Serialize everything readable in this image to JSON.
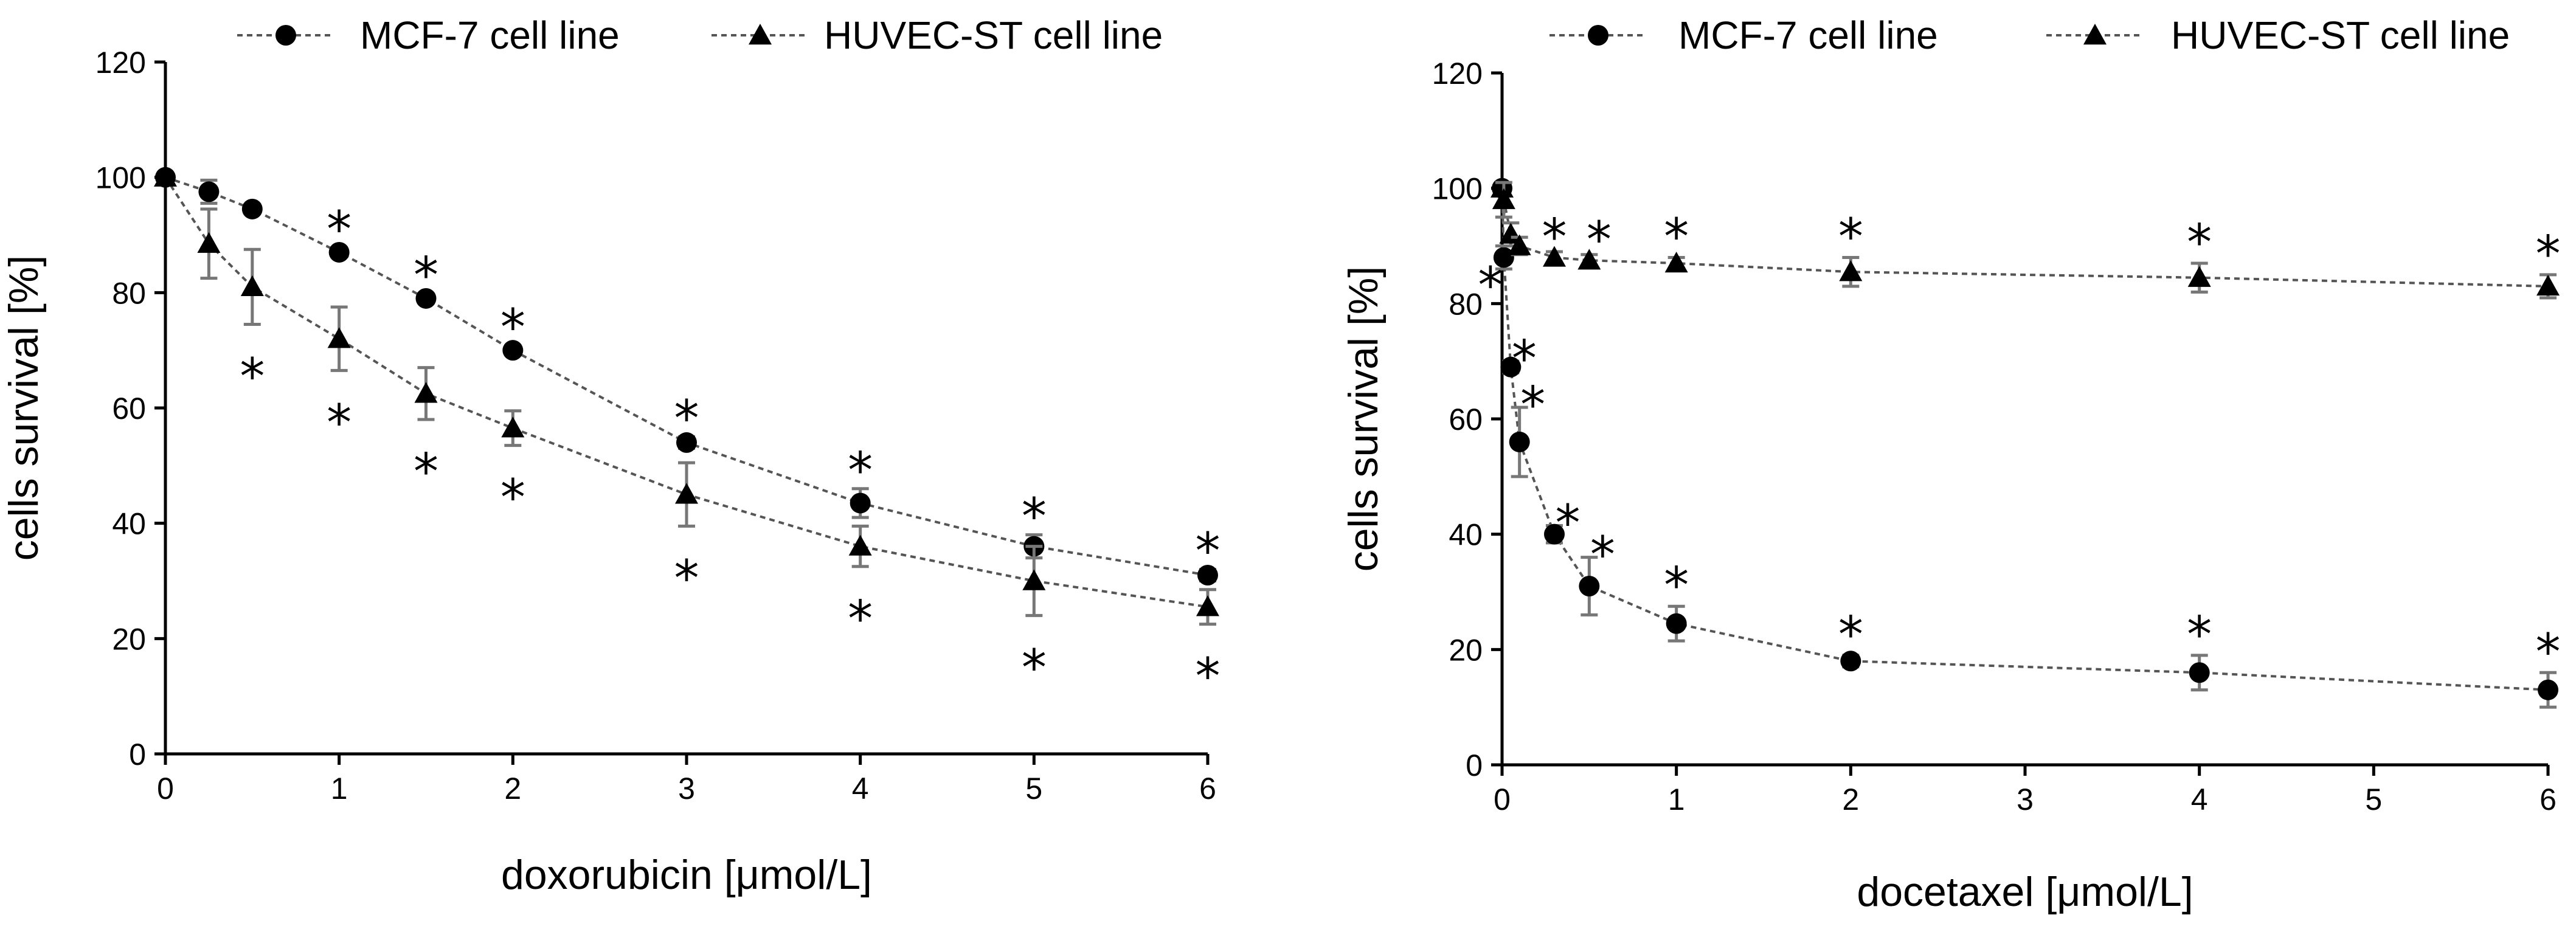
{
  "chart_data": [
    {
      "type": "line",
      "title": "",
      "xlabel": "doxorubicin [μmol/L]",
      "ylabel": "cells survival [%]",
      "xlim": [
        0,
        6
      ],
      "ylim": [
        0,
        120
      ],
      "xticks": [
        0,
        1,
        2,
        3,
        4,
        5,
        6
      ],
      "yticks": [
        0,
        20,
        40,
        60,
        80,
        100,
        120
      ],
      "legend": "top",
      "significance_marker": "*",
      "series": [
        {
          "name": "MCF-7 cell line",
          "marker": "circle",
          "color": "#000000",
          "points": [
            {
              "x": 0,
              "y": 100,
              "err": 0,
              "sig": false
            },
            {
              "x": 0.25,
              "y": 97.5,
              "err": 2,
              "sig": false
            },
            {
              "x": 0.5,
              "y": 94.5,
              "err": 0.8,
              "sig": false
            },
            {
              "x": 1,
              "y": 87,
              "err": 0.8,
              "sig": true
            },
            {
              "x": 1.5,
              "y": 79,
              "err": 0.8,
              "sig": true
            },
            {
              "x": 2,
              "y": 70,
              "err": 0.8,
              "sig": true
            },
            {
              "x": 3,
              "y": 54,
              "err": 1,
              "sig": true
            },
            {
              "x": 4,
              "y": 43.5,
              "err": 2.5,
              "sig": true
            },
            {
              "x": 5,
              "y": 36,
              "err": 2,
              "sig": true
            },
            {
              "x": 6,
              "y": 31,
              "err": 1,
              "sig": true
            }
          ]
        },
        {
          "name": "HUVEC-ST cell line",
          "marker": "triangle",
          "color": "#000000",
          "points": [
            {
              "x": 0,
              "y": 100,
              "err": 0,
              "sig": false
            },
            {
              "x": 0.25,
              "y": 88.5,
              "err": 6,
              "sig": false
            },
            {
              "x": 0.5,
              "y": 81,
              "err": 6.5,
              "sig": true
            },
            {
              "x": 1,
              "y": 72,
              "err": 5.5,
              "sig": true
            },
            {
              "x": 1.5,
              "y": 62.5,
              "err": 4.5,
              "sig": true
            },
            {
              "x": 2,
              "y": 56.5,
              "err": 3,
              "sig": true
            },
            {
              "x": 3,
              "y": 45,
              "err": 5.5,
              "sig": true
            },
            {
              "x": 4,
              "y": 36,
              "err": 3.5,
              "sig": true
            },
            {
              "x": 5,
              "y": 30,
              "err": 6,
              "sig": true
            },
            {
              "x": 6,
              "y": 25.5,
              "err": 3,
              "sig": true
            }
          ]
        }
      ]
    },
    {
      "type": "line",
      "title": "",
      "xlabel": "docetaxel [μmol/L]",
      "ylabel": "cells survival [%]",
      "xlim": [
        0,
        6
      ],
      "ylim": [
        0,
        120
      ],
      "xticks": [
        0,
        1,
        2,
        3,
        4,
        5,
        6
      ],
      "yticks": [
        0,
        20,
        40,
        60,
        80,
        100,
        120
      ],
      "legend": "top",
      "significance_marker": "*",
      "series": [
        {
          "name": "MCF-7 cell line",
          "marker": "circle",
          "color": "#000000",
          "points": [
            {
              "x": 0,
              "y": 100,
              "err": 0,
              "sig": false
            },
            {
              "x": 0.01,
              "y": 88,
              "err": 2,
              "sig": true
            },
            {
              "x": 0.05,
              "y": 69,
              "err": 1,
              "sig": true
            },
            {
              "x": 0.1,
              "y": 56,
              "err": 6,
              "sig": true
            },
            {
              "x": 0.3,
              "y": 40,
              "err": 1.5,
              "sig": true
            },
            {
              "x": 0.5,
              "y": 31,
              "err": 5,
              "sig": true
            },
            {
              "x": 1,
              "y": 24.5,
              "err": 3,
              "sig": true
            },
            {
              "x": 2,
              "y": 18,
              "err": 1,
              "sig": true
            },
            {
              "x": 4,
              "y": 16,
              "err": 3,
              "sig": true
            },
            {
              "x": 6,
              "y": 13,
              "err": 3,
              "sig": true
            }
          ]
        },
        {
          "name": "HUVEC-ST cell line",
          "marker": "triangle",
          "color": "#000000",
          "points": [
            {
              "x": 0,
              "y": 100,
              "err": 0,
              "sig": false
            },
            {
              "x": 0.01,
              "y": 98,
              "err": 3,
              "sig": false
            },
            {
              "x": 0.05,
              "y": 92,
              "err": 2,
              "sig": false
            },
            {
              "x": 0.1,
              "y": 90,
              "err": 1.5,
              "sig": false
            },
            {
              "x": 0.3,
              "y": 88,
              "err": 1,
              "sig": true
            },
            {
              "x": 0.5,
              "y": 87.5,
              "err": 1,
              "sig": true
            },
            {
              "x": 1,
              "y": 87,
              "err": 1,
              "sig": true
            },
            {
              "x": 2,
              "y": 85.5,
              "err": 2.5,
              "sig": true
            },
            {
              "x": 4,
              "y": 84.5,
              "err": 2.5,
              "sig": true
            },
            {
              "x": 6,
              "y": 83,
              "err": 2,
              "sig": true
            }
          ]
        }
      ]
    }
  ]
}
